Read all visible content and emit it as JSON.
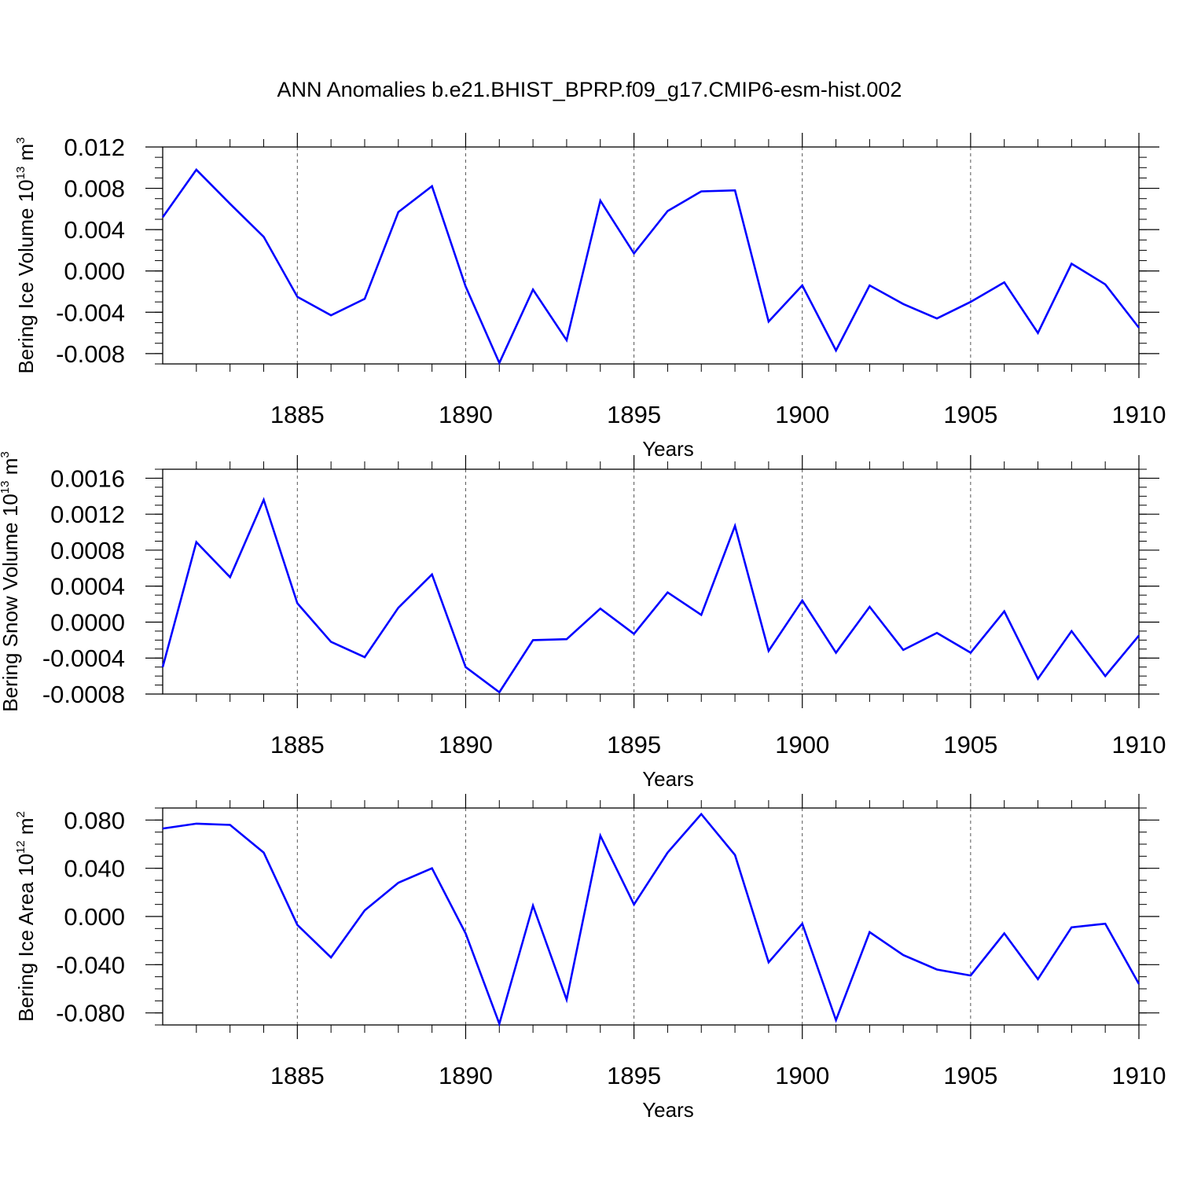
{
  "title": "ANN Anomalies b.e21.BHIST_BPRP.f09_g17.CMIP6-esm-hist.002",
  "chart_data": [
    {
      "type": "line",
      "series": [
        {
          "values": [
            0.0052,
            0.0098,
            0.0065,
            0.0033,
            -0.0025,
            -0.0043,
            -0.0027,
            0.0057,
            0.0082,
            -0.0015,
            -0.0089,
            -0.0018,
            -0.0067,
            0.0068,
            0.0017,
            0.0058,
            0.0077,
            0.0078,
            -0.0049,
            -0.0014,
            -0.0077,
            -0.0014,
            -0.0032,
            -0.0046,
            -0.003,
            -0.0011,
            -0.006,
            0.0007,
            -0.0013,
            -0.0055
          ],
          "color": "#0000ff"
        }
      ],
      "x": [
        1881,
        1882,
        1883,
        1884,
        1885,
        1886,
        1887,
        1888,
        1889,
        1890,
        1891,
        1892,
        1893,
        1894,
        1895,
        1896,
        1897,
        1898,
        1899,
        1900,
        1901,
        1902,
        1903,
        1904,
        1905,
        1906,
        1907,
        1908,
        1909,
        1910
      ],
      "xlim": [
        1881,
        1910
      ],
      "ylim": [
        -0.009,
        0.012
      ],
      "xticks": [
        1885,
        1890,
        1895,
        1900,
        1905,
        1910
      ],
      "xtick_labels": [
        "1885",
        "1890",
        "1895",
        "1900",
        "1905",
        "1910"
      ],
      "yticks": [
        0.012,
        0.008,
        0.004,
        0.0,
        -0.004,
        -0.008
      ],
      "ytick_labels": [
        "0.012",
        "0.008",
        "0.004",
        "0.000",
        "-0.004",
        "-0.008"
      ],
      "xlabel": "Years",
      "ylabel": "Bering Ice Volume 10",
      "ylabel_exp": "13",
      "ylabel_unit": "m",
      "ylabel_unit_exp": "3",
      "grid": "vertical dashed"
    },
    {
      "type": "line",
      "series": [
        {
          "values": [
            -0.0005,
            0.00089,
            0.0005,
            0.00136,
            0.00021,
            -0.00022,
            -0.00039,
            0.00016,
            0.00053,
            -0.0005,
            -0.00078,
            -0.0002,
            -0.00019,
            0.00015,
            -0.00013,
            0.00033,
            8e-05,
            0.00107,
            -0.00032,
            0.00024,
            -0.00034,
            0.00017,
            -0.00031,
            -0.00012,
            -0.00034,
            0.00012,
            -0.00063,
            -0.0001,
            -0.0006,
            -0.00015
          ],
          "color": "#0000ff"
        }
      ],
      "x": [
        1881,
        1882,
        1883,
        1884,
        1885,
        1886,
        1887,
        1888,
        1889,
        1890,
        1891,
        1892,
        1893,
        1894,
        1895,
        1896,
        1897,
        1898,
        1899,
        1900,
        1901,
        1902,
        1903,
        1904,
        1905,
        1906,
        1907,
        1908,
        1909,
        1910
      ],
      "xlim": [
        1881,
        1910
      ],
      "ylim": [
        -0.0008,
        0.0017
      ],
      "xticks": [
        1885,
        1890,
        1895,
        1900,
        1905,
        1910
      ],
      "xtick_labels": [
        "1885",
        "1890",
        "1895",
        "1900",
        "1905",
        "1910"
      ],
      "yticks": [
        0.0016,
        0.0012,
        0.0008,
        0.0004,
        0.0,
        -0.0004,
        -0.0008
      ],
      "ytick_labels": [
        "0.0016",
        "0.0012",
        "0.0008",
        "0.0004",
        "0.0000",
        "-0.0004",
        "-0.0008"
      ],
      "xlabel": "Years",
      "ylabel": "Bering Snow Volume 10",
      "ylabel_exp": "13",
      "ylabel_unit": "m",
      "ylabel_unit_exp": "3",
      "grid": "vertical dashed"
    },
    {
      "type": "line",
      "series": [
        {
          "values": [
            0.073,
            0.077,
            0.076,
            0.053,
            -0.007,
            -0.034,
            0.005,
            0.028,
            0.04,
            -0.014,
            -0.089,
            0.009,
            -0.069,
            0.067,
            0.01,
            0.053,
            0.085,
            0.051,
            -0.038,
            -0.006,
            -0.086,
            -0.013,
            -0.032,
            -0.044,
            -0.049,
            -0.014,
            -0.052,
            -0.009,
            -0.006,
            -0.056
          ],
          "color": "#0000ff"
        }
      ],
      "x": [
        1881,
        1882,
        1883,
        1884,
        1885,
        1886,
        1887,
        1888,
        1889,
        1890,
        1891,
        1892,
        1893,
        1894,
        1895,
        1896,
        1897,
        1898,
        1899,
        1900,
        1901,
        1902,
        1903,
        1904,
        1905,
        1906,
        1907,
        1908,
        1909,
        1910
      ],
      "xlim": [
        1881,
        1910
      ],
      "ylim": [
        -0.09,
        0.09
      ],
      "xticks": [
        1885,
        1890,
        1895,
        1900,
        1905,
        1910
      ],
      "xtick_labels": [
        "1885",
        "1890",
        "1895",
        "1900",
        "1905",
        "1910"
      ],
      "yticks": [
        0.08,
        0.04,
        0.0,
        -0.04,
        -0.08
      ],
      "ytick_labels": [
        "0.080",
        "0.040",
        "0.000",
        "-0.040",
        "-0.080"
      ],
      "xlabel": "Years",
      "ylabel": "Bering Ice Area 10",
      "ylabel_exp": "12",
      "ylabel_unit": "m",
      "ylabel_unit_exp": "2",
      "grid": "vertical dashed"
    }
  ]
}
